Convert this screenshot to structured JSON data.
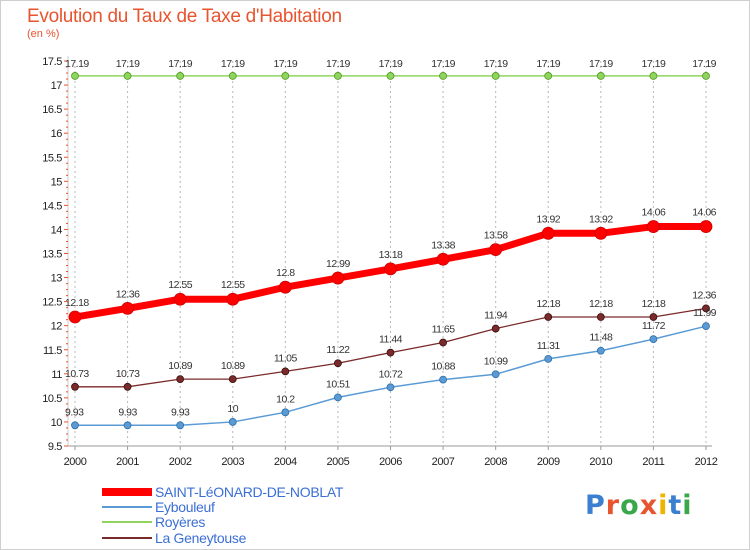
{
  "header": {
    "title": "Evolution du Taux de Taxe d'Habitation",
    "unit": "(en %)"
  },
  "logo": {
    "text": "Proxiti",
    "letter_colors": [
      "#3a7fd0",
      "#e8542f",
      "#3aa84a",
      "#e8542f",
      "#f0b400",
      "#3a7fd0",
      "#3aa84a"
    ]
  },
  "chart_data": {
    "type": "line",
    "title": "Evolution du Taux de Taxe d'Habitation",
    "ylabel": "(en %)",
    "xlabel": "",
    "ylim": [
      9.5,
      17.5
    ],
    "yticks": [
      9.5,
      10,
      10.5,
      11,
      11.5,
      12,
      12.5,
      13,
      13.5,
      14,
      14.5,
      15,
      15.5,
      16,
      16.5,
      17,
      17.5
    ],
    "ytick_labels": [
      "9.5",
      "10",
      "10.5",
      "11",
      "11.5",
      "12",
      "12.5",
      "13",
      "13.5",
      "14",
      "14.5",
      "15",
      "15.5",
      "16",
      "16.5",
      "17",
      "17.5"
    ],
    "x": [
      "2000",
      "2001",
      "2002",
      "2003",
      "2004",
      "2005",
      "2006",
      "2007",
      "2008",
      "2009",
      "2010",
      "2011",
      "2012"
    ],
    "grid": "vertical-dashed",
    "legend_position": "bottom-left",
    "series": [
      {
        "name": "SAINT-LéONARD-DE-NOBLAT",
        "color": "#ff0000",
        "values": [
          12.18,
          12.36,
          12.55,
          12.55,
          12.8,
          12.99,
          13.18,
          13.38,
          13.58,
          13.92,
          13.92,
          14.06,
          14.06
        ],
        "labels": [
          "12.18",
          "12.36",
          "12.55",
          "12.55",
          "12.8",
          "12.99",
          "13.18",
          "13.38",
          "13.58",
          "13.92",
          "13.92",
          "14.06",
          "14.06"
        ]
      },
      {
        "name": "Eybouleuf",
        "color": "#5b9bd5",
        "values": [
          9.93,
          9.93,
          9.93,
          10,
          10.2,
          10.51,
          10.72,
          10.88,
          10.99,
          11.31,
          11.48,
          11.72,
          11.99
        ],
        "labels": [
          "9.93",
          "9.93",
          "9.93",
          "10",
          "10.2",
          "10.51",
          "10.72",
          "10.88",
          "10.99",
          "11.31",
          "11.48",
          "11.72",
          "11.99"
        ]
      },
      {
        "name": "Royères",
        "color": "#8fd45f",
        "values": [
          17.19,
          17.19,
          17.19,
          17.19,
          17.19,
          17.19,
          17.19,
          17.19,
          17.19,
          17.19,
          17.19,
          17.19,
          17.19
        ],
        "labels": [
          "17.19",
          "17.19",
          "17.19",
          "17.19",
          "17.19",
          "17.19",
          "17.19",
          "17.19",
          "17.19",
          "17.19",
          "17.19",
          "17.19",
          "17.19"
        ]
      },
      {
        "name": "La Geneytouse",
        "color": "#7a2a2a",
        "values": [
          10.73,
          10.73,
          10.89,
          10.89,
          11.05,
          11.22,
          11.44,
          11.65,
          11.94,
          12.18,
          12.18,
          12.18,
          12.36
        ],
        "labels": [
          "10.73",
          "10.73",
          "10.89",
          "10.89",
          "11.05",
          "11.22",
          "11.44",
          "11.65",
          "11.94",
          "12.18",
          "12.18",
          "12.18",
          "12.36"
        ]
      }
    ]
  }
}
